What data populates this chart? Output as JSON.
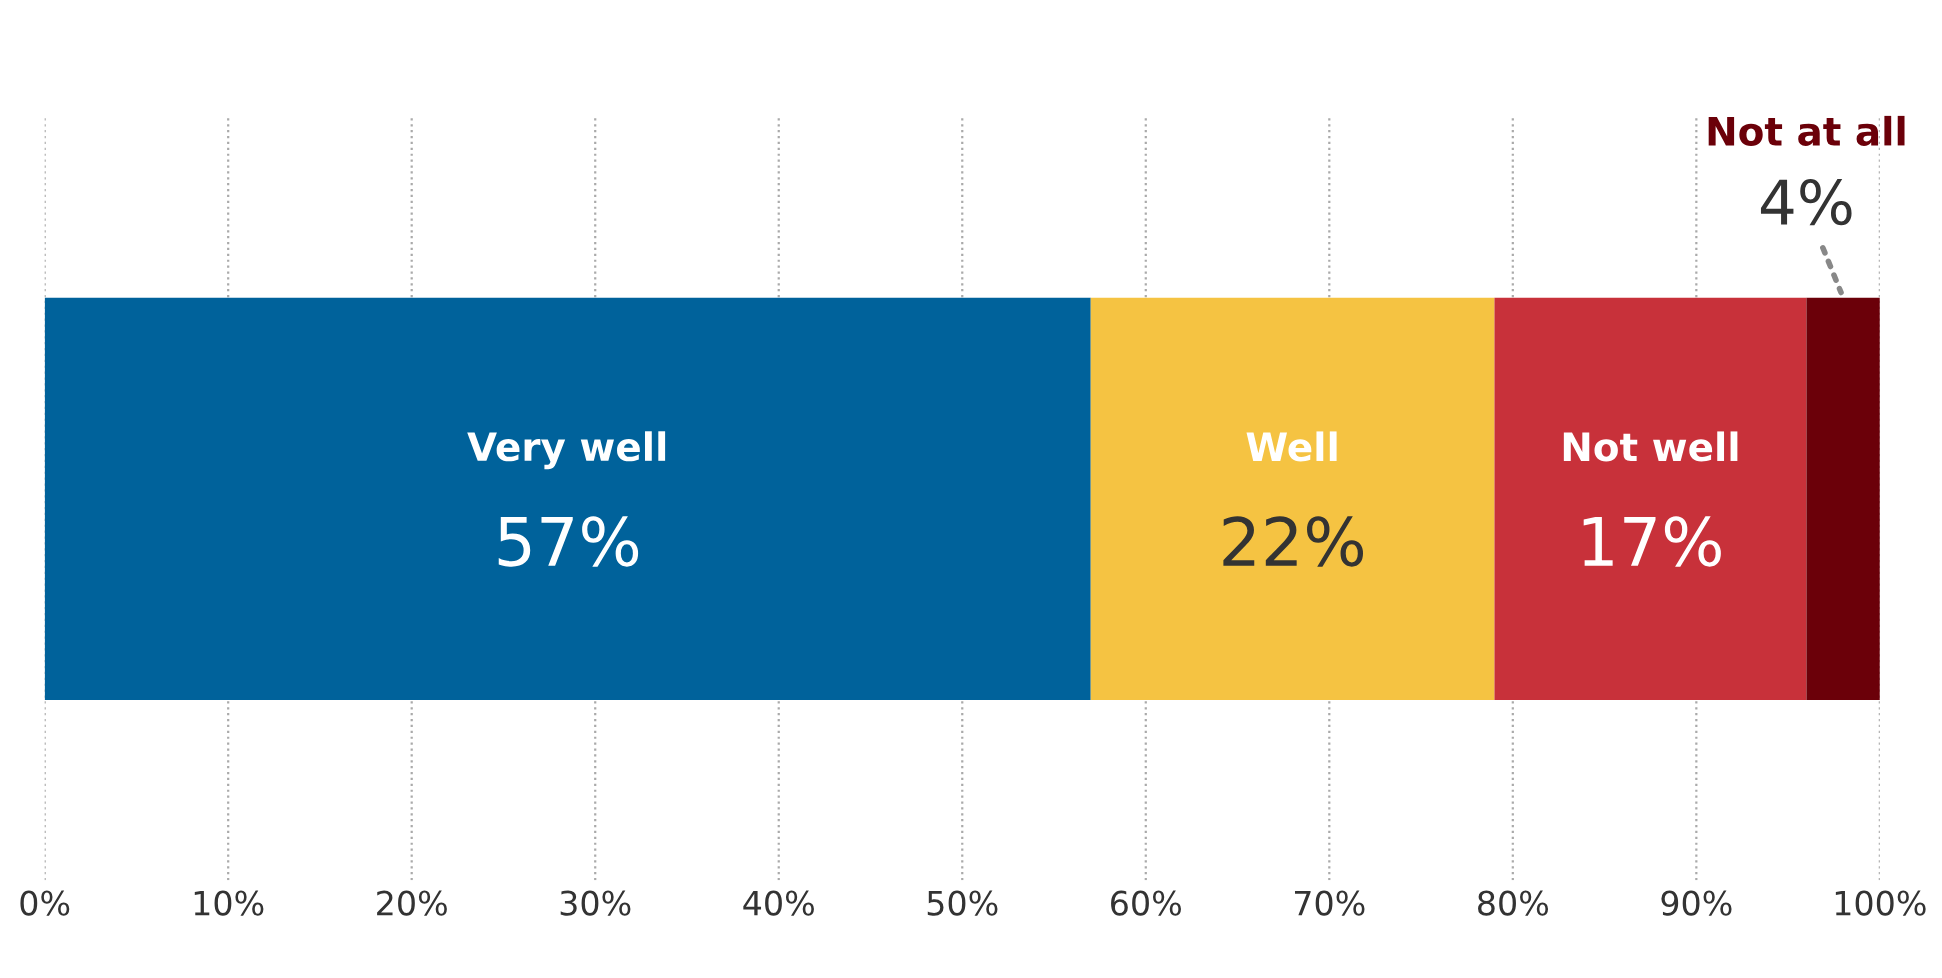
{
  "chart_data": {
    "type": "bar",
    "orientation": "horizontal",
    "stacked": true,
    "categories": [
      null
    ],
    "series": [
      {
        "name": "Very well",
        "color": "#00629b",
        "values": [
          57
        ],
        "value_labels": [
          "57%"
        ]
      },
      {
        "name": "Well",
        "color": "#f5c342",
        "values": [
          22
        ],
        "value_labels": [
          "22%"
        ]
      },
      {
        "name": "Not well",
        "color": "#c8313a",
        "values": [
          17
        ],
        "value_labels": [
          "17%"
        ]
      },
      {
        "name": "Not at all",
        "color": "#6b0009",
        "values": [
          4
        ],
        "value_labels": [
          "4%"
        ]
      }
    ],
    "xlim": [
      0,
      100
    ],
    "xticks": [
      {
        "value": 0,
        "label": "0%"
      },
      {
        "value": 10,
        "label": "10%"
      },
      {
        "value": 20,
        "label": "20%"
      },
      {
        "value": 30,
        "label": "30%"
      },
      {
        "value": 40,
        "label": "40%"
      },
      {
        "value": 50,
        "label": "50%"
      },
      {
        "value": 60,
        "label": "60%"
      },
      {
        "value": 70,
        "label": "70%"
      },
      {
        "value": 80,
        "label": "80%"
      },
      {
        "value": 90,
        "label": "90%"
      },
      {
        "value": 100,
        "label": "100%"
      }
    ],
    "grid": "x",
    "tick_labels": "x",
    "legend": false
  }
}
